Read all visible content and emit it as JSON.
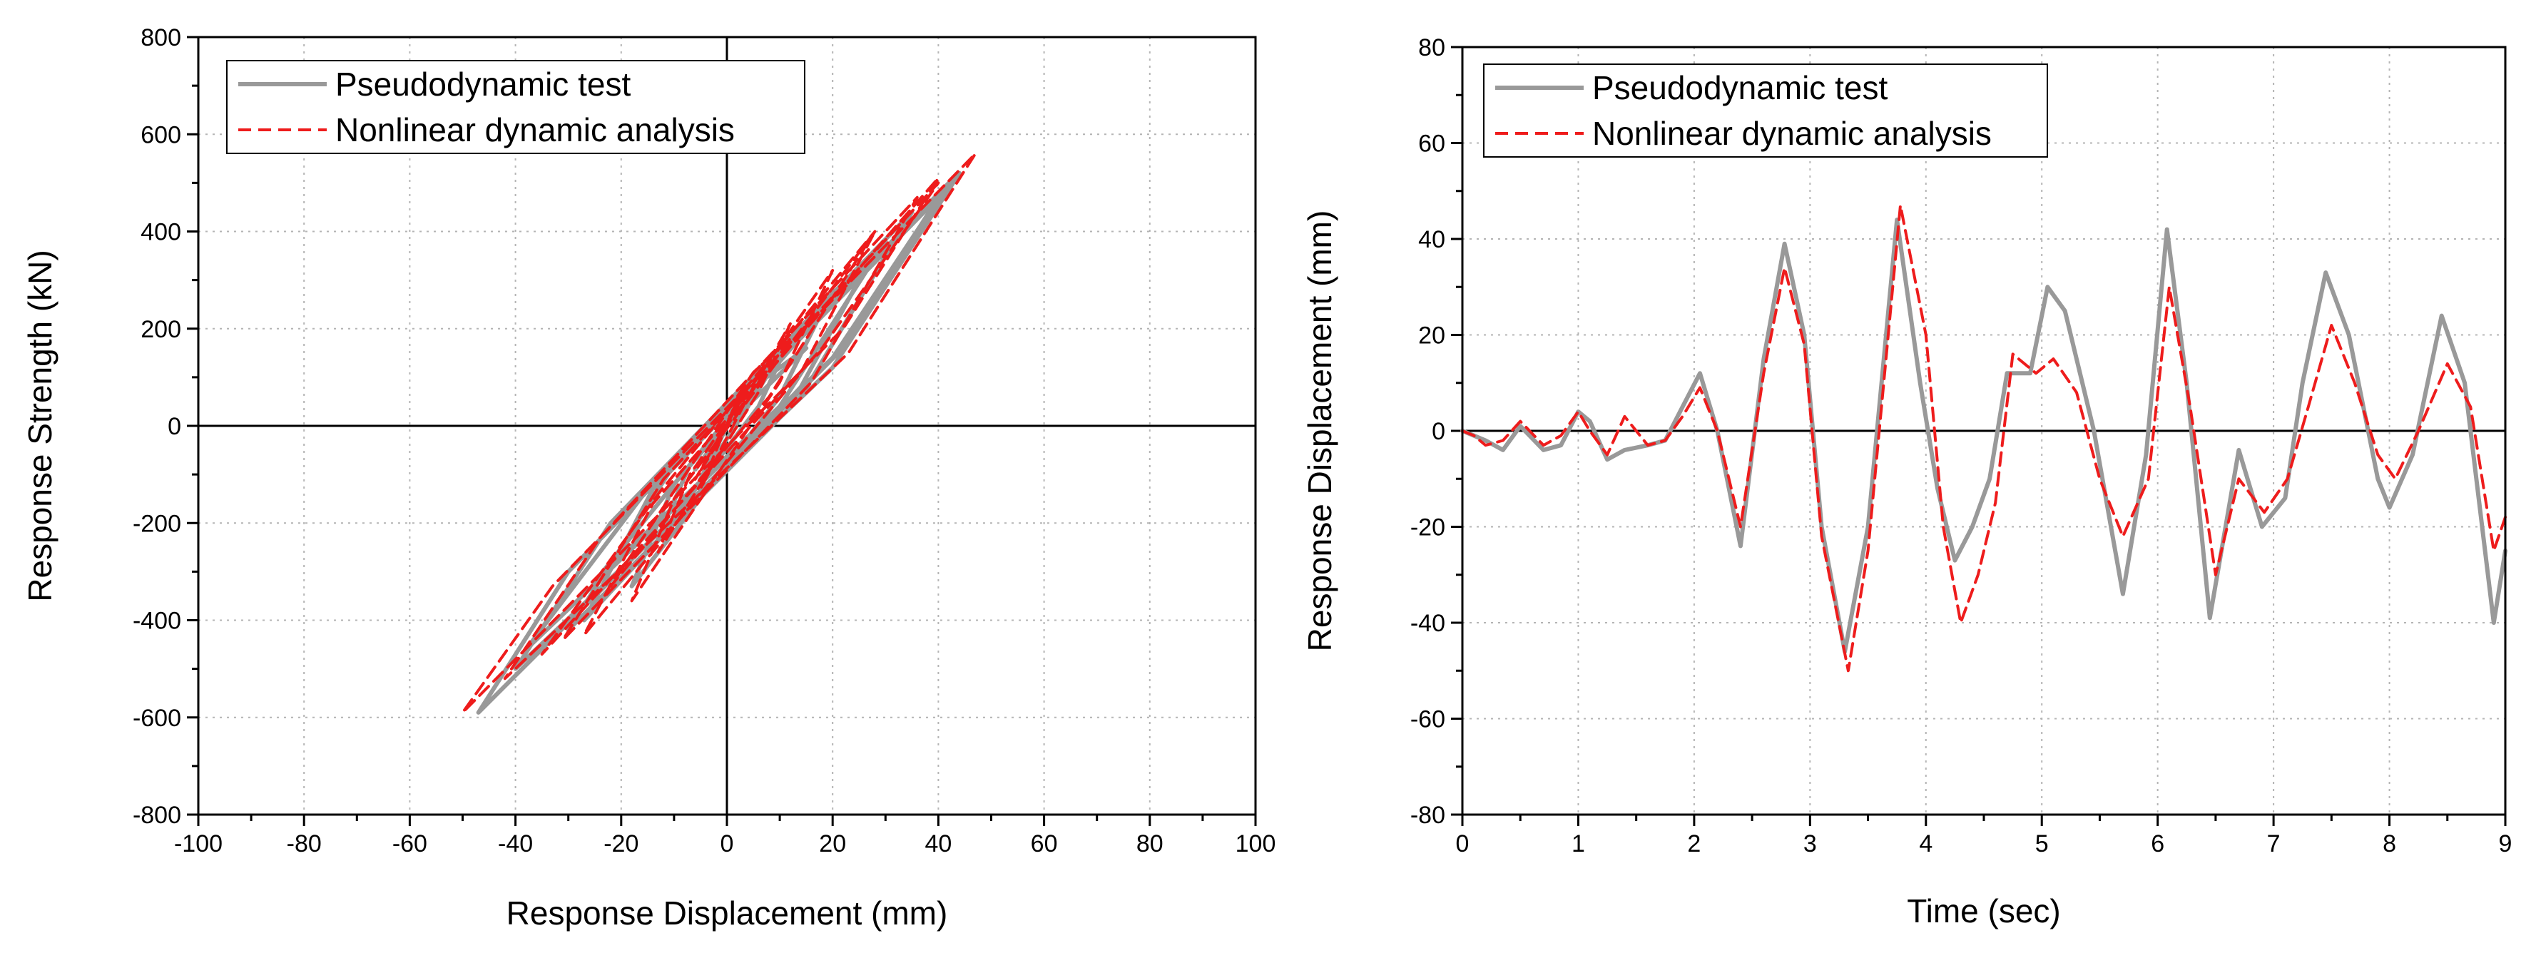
{
  "chart_data": [
    {
      "type": "line",
      "title": "",
      "xlabel": "Response Displacement (mm)",
      "ylabel": "Response Strength (kN)",
      "xlim": [
        -100,
        100
      ],
      "ylim": [
        -800,
        800
      ],
      "xticks": [
        -100,
        -80,
        -60,
        -40,
        -20,
        0,
        20,
        40,
        60,
        80,
        100
      ],
      "yticks": [
        -800,
        -600,
        -400,
        -200,
        0,
        200,
        400,
        600,
        800
      ],
      "xtick_labels": [
        "-100",
        "-80",
        "-60",
        "-40",
        "-20",
        "0",
        "20",
        "40",
        "60",
        "80",
        "100"
      ],
      "ytick_labels": [
        "-800",
        "-600",
        "-400",
        "-200",
        "0",
        "200",
        "400",
        "600",
        "800"
      ],
      "grid": true,
      "legend_position": "top-left",
      "series": [
        {
          "name": "Pseudodynamic test",
          "color": "#999999",
          "style": "solid",
          "x": [
            0,
            -3,
            2,
            4,
            -6,
            -2,
            3,
            1,
            -5,
            4,
            12,
            6,
            -13,
            -7,
            20,
            10,
            -18,
            -10,
            28,
            14,
            -27,
            -14,
            40,
            22,
            -47,
            -30,
            44,
            20,
            -40,
            -22,
            35,
            14,
            -30,
            -10,
            42,
            20,
            -38,
            -15,
            30,
            10,
            -25,
            5,
            15,
            0
          ],
          "y": [
            0,
            -40,
            30,
            60,
            -90,
            -30,
            50,
            20,
            -110,
            40,
            180,
            40,
            -230,
            -80,
            280,
            60,
            -330,
            -120,
            360,
            80,
            -400,
            -130,
            470,
            160,
            -590,
            -300,
            520,
            120,
            -500,
            -200,
            440,
            60,
            -420,
            -80,
            500,
            140,
            -460,
            -130,
            380,
            40,
            -320,
            80,
            160,
            0
          ]
        },
        {
          "name": "Nonlinear dynamic analysis",
          "color": "#ee1c1c",
          "style": "dashed",
          "x": [
            0,
            -3,
            2,
            4,
            -6,
            -2,
            3,
            1,
            -5,
            4,
            12,
            6,
            -13,
            -7,
            20,
            10,
            -18,
            -10,
            28,
            14,
            -27,
            -14,
            40,
            22,
            -50,
            -33,
            47,
            23,
            -42,
            -24,
            36,
            16,
            -31,
            -12,
            40,
            18,
            -35,
            -13,
            28,
            8,
            -22,
            5,
            12,
            0
          ],
          "y": [
            0,
            -50,
            40,
            80,
            -110,
            -40,
            70,
            30,
            -130,
            60,
            210,
            70,
            -260,
            -100,
            320,
            90,
            -360,
            -150,
            400,
            110,
            -430,
            -160,
            510,
            200,
            -590,
            -330,
            560,
            150,
            -520,
            -230,
            470,
            90,
            -440,
            -110,
            500,
            160,
            -470,
            -140,
            400,
            60,
            -330,
            110,
            180,
            0
          ]
        }
      ]
    },
    {
      "type": "line",
      "title": "",
      "xlabel": "Time (sec)",
      "ylabel": "Response Displacement (mm)",
      "xlim": [
        0,
        9
      ],
      "ylim": [
        -80,
        80
      ],
      "xticks": [
        0,
        1,
        2,
        3,
        4,
        5,
        6,
        7,
        8,
        9
      ],
      "yticks": [
        -80,
        -60,
        -40,
        -20,
        0,
        20,
        40,
        60,
        80
      ],
      "xtick_labels": [
        "0",
        "1",
        "2",
        "3",
        "4",
        "5",
        "6",
        "7",
        "8",
        "9"
      ],
      "ytick_labels": [
        "-80",
        "-60",
        "-40",
        "-20",
        "0",
        "20",
        "40",
        "60",
        "80"
      ],
      "grid": true,
      "legend_position": "top-left",
      "series": [
        {
          "name": "Pseudodynamic test",
          "color": "#999999",
          "style": "solid",
          "x": [
            0,
            0.1,
            0.2,
            0.35,
            0.5,
            0.7,
            0.85,
            1.0,
            1.1,
            1.25,
            1.4,
            1.6,
            1.75,
            1.9,
            2.05,
            2.2,
            2.4,
            2.6,
            2.78,
            2.95,
            3.1,
            3.3,
            3.5,
            3.75,
            3.95,
            4.1,
            4.25,
            4.4,
            4.55,
            4.7,
            4.9,
            5.05,
            5.2,
            5.45,
            5.7,
            5.9,
            6.08,
            6.25,
            6.45,
            6.7,
            6.9,
            7.1,
            7.25,
            7.45,
            7.65,
            7.9,
            8.0,
            8.2,
            8.45,
            8.65,
            8.9,
            9.0
          ],
          "y": [
            0,
            -1,
            -2,
            -4,
            1,
            -4,
            -3,
            4,
            2,
            -6,
            -4,
            -3,
            -2,
            5,
            12,
            0,
            -24,
            15,
            39,
            20,
            -20,
            -46,
            -20,
            44,
            10,
            -12,
            -27,
            -20,
            -10,
            12,
            12,
            30,
            25,
            0,
            -34,
            -5,
            42,
            10,
            -39,
            -4,
            -20,
            -14,
            10,
            33,
            20,
            -10,
            -16,
            -5,
            24,
            10,
            -40,
            -25
          ]
        },
        {
          "name": "Nonlinear dynamic analysis",
          "color": "#ee1c1c",
          "style": "dashed",
          "x": [
            0,
            0.1,
            0.2,
            0.35,
            0.5,
            0.7,
            0.85,
            1.0,
            1.1,
            1.25,
            1.4,
            1.6,
            1.75,
            1.9,
            2.05,
            2.2,
            2.4,
            2.6,
            2.78,
            2.95,
            3.1,
            3.33,
            3.5,
            3.78,
            4.0,
            4.15,
            4.3,
            4.45,
            4.6,
            4.75,
            4.95,
            5.1,
            5.3,
            5.5,
            5.7,
            5.92,
            6.1,
            6.28,
            6.5,
            6.7,
            6.92,
            7.12,
            7.3,
            7.5,
            7.7,
            7.9,
            8.05,
            8.25,
            8.5,
            8.7,
            8.9,
            9.0
          ],
          "y": [
            0,
            -1,
            -3,
            -2,
            2,
            -3,
            -1,
            4,
            0,
            -5,
            3,
            -3,
            -2,
            3,
            9,
            0,
            -20,
            12,
            34,
            18,
            -22,
            -50,
            -25,
            47,
            20,
            -20,
            -40,
            -30,
            -15,
            16,
            12,
            15,
            8,
            -10,
            -22,
            -10,
            30,
            5,
            -30,
            -10,
            -17,
            -10,
            5,
            22,
            10,
            -5,
            -10,
            0,
            14,
            5,
            -25,
            -18
          ]
        }
      ]
    }
  ]
}
